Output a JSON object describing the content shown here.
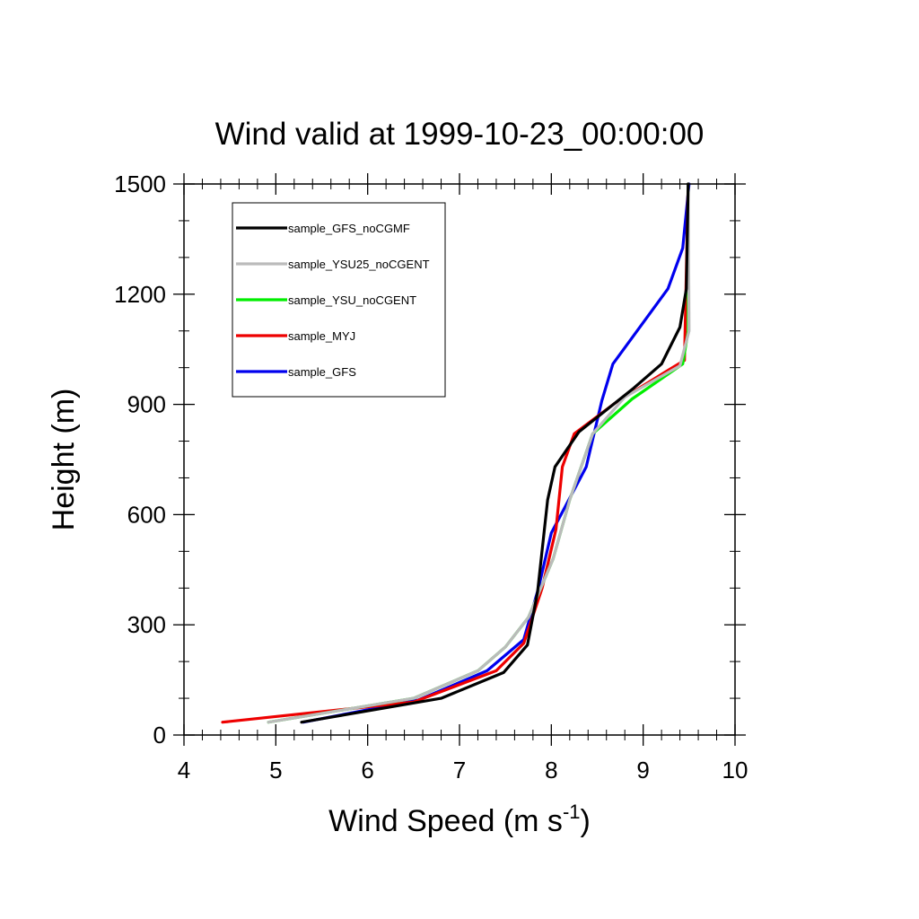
{
  "chart_data": {
    "type": "line",
    "title": "Wind valid at 1999-10-23_00:00:00",
    "xlabel": "Wind Speed (m s",
    "xlabel_sup": "-1",
    "xlabel_tail": ")",
    "ylabel": "Height (m)",
    "xlim": [
      4,
      10
    ],
    "ylim": [
      0,
      1500
    ],
    "xticks": [
      4,
      5,
      6,
      7,
      8,
      9,
      10
    ],
    "yticks": [
      0,
      300,
      600,
      900,
      1200,
      1500
    ],
    "xtick_labels": [
      "4",
      "5",
      "6",
      "7",
      "8",
      "9",
      "10"
    ],
    "ytick_labels": [
      "0",
      "300",
      "600",
      "900",
      "1200",
      "1500"
    ],
    "grid": false,
    "legend_position": "top-left",
    "series": [
      {
        "name": "sample_GFS_noCGMF",
        "color": "#000000",
        "points": [
          [
            5.28,
            35
          ],
          [
            6.8,
            100
          ],
          [
            7.48,
            170
          ],
          [
            7.74,
            245
          ],
          [
            7.85,
            390
          ],
          [
            7.96,
            640
          ],
          [
            8.04,
            730
          ],
          [
            8.3,
            825
          ],
          [
            8.9,
            945
          ],
          [
            9.2,
            1010
          ],
          [
            9.4,
            1110
          ],
          [
            9.47,
            1215
          ],
          [
            9.49,
            1500
          ]
        ]
      },
      {
        "name": "sample_YSU25_noCGENT",
        "color": "#bbbbbb",
        "points": [
          [
            4.92,
            35
          ],
          [
            6.5,
            100
          ],
          [
            7.2,
            175
          ],
          [
            7.5,
            240
          ],
          [
            7.75,
            320
          ],
          [
            8.02,
            480
          ],
          [
            8.2,
            640
          ],
          [
            8.45,
            820
          ],
          [
            8.8,
            920
          ],
          [
            9.4,
            1005
          ],
          [
            9.5,
            1100
          ],
          [
            9.49,
            1500
          ]
        ]
      },
      {
        "name": "sample_YSU_noCGENT",
        "color": "#00ee00",
        "points": [
          [
            4.92,
            35
          ],
          [
            6.5,
            100
          ],
          [
            7.2,
            175
          ],
          [
            7.5,
            240
          ],
          [
            7.75,
            320
          ],
          [
            8.02,
            480
          ],
          [
            8.2,
            640
          ],
          [
            8.45,
            820
          ],
          [
            8.88,
            915
          ],
          [
            9.43,
            1010
          ],
          [
            9.49,
            1100
          ],
          [
            9.49,
            1500
          ]
        ]
      },
      {
        "name": "sample_MYJ",
        "color": "#ee0000",
        "points": [
          [
            4.42,
            35
          ],
          [
            6.5,
            90
          ],
          [
            7.4,
            175
          ],
          [
            7.7,
            250
          ],
          [
            7.9,
            400
          ],
          [
            8.05,
            560
          ],
          [
            8.12,
            730
          ],
          [
            8.25,
            820
          ],
          [
            8.7,
            905
          ],
          [
            9.25,
            990
          ],
          [
            9.45,
            1020
          ],
          [
            9.49,
            1500
          ]
        ]
      },
      {
        "name": "sample_GFS",
        "color": "#0000ee",
        "points": [
          [
            5.3,
            35
          ],
          [
            6.55,
            95
          ],
          [
            7.3,
            175
          ],
          [
            7.7,
            260
          ],
          [
            7.86,
            400
          ],
          [
            8.0,
            550
          ],
          [
            8.38,
            730
          ],
          [
            8.55,
            910
          ],
          [
            8.67,
            1010
          ],
          [
            9.27,
            1215
          ],
          [
            9.43,
            1325
          ],
          [
            9.5,
            1500
          ]
        ]
      }
    ]
  }
}
